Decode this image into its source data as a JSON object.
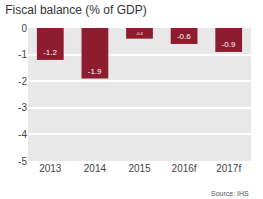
{
  "chart_data": {
    "type": "bar",
    "title": "Fiscal balance (% of GDP)",
    "categories": [
      "2013",
      "2014",
      "2015",
      "2016f",
      "2017f"
    ],
    "values": [
      -1.2,
      -1.9,
      -0.4,
      -0.6,
      -0.9
    ],
    "color": "#8c1c2e",
    "ylim": [
      -5,
      0
    ],
    "yticks": [
      0,
      -1,
      -2,
      -3,
      -4,
      -5
    ],
    "grid": true,
    "data_labels": true,
    "source": "Source: IHS"
  }
}
